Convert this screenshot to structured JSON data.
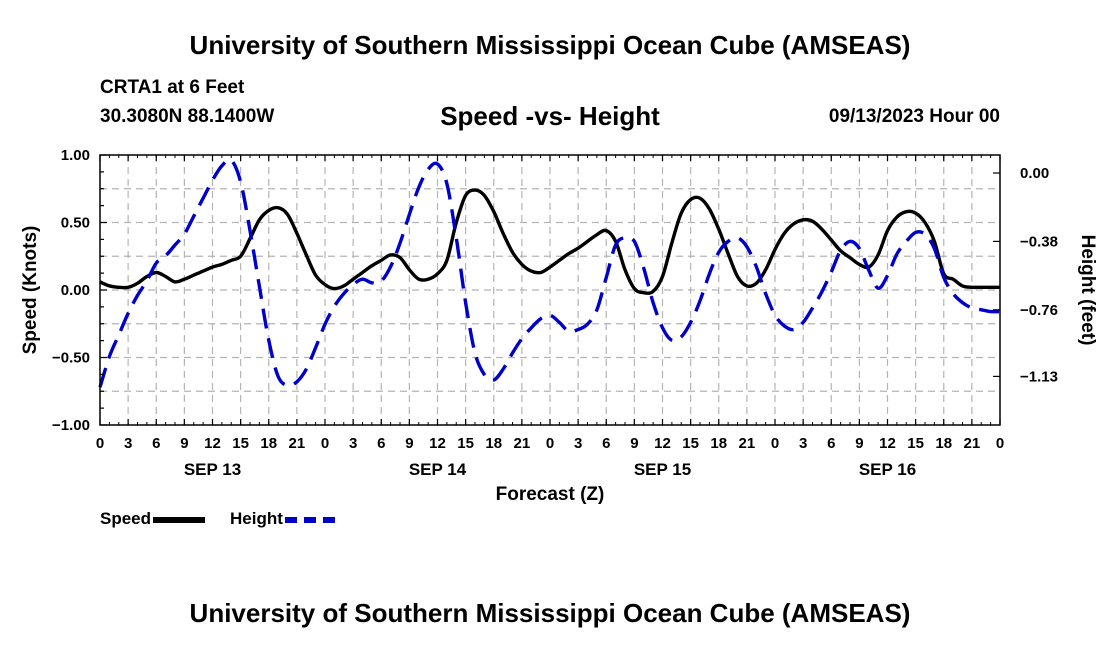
{
  "header": {
    "title": "University of Southern Mississippi Ocean Cube (AMSEAS)",
    "station": "CRTA1 at 6 Feet",
    "coordinates": "30.3080N  88.1400W",
    "subtitle": "Speed -vs- Height",
    "datetime": "09/13/2023 Hour 00"
  },
  "footer": {
    "title": "University of Southern Mississippi Ocean Cube (AMSEAS)"
  },
  "legend": {
    "speed_label": "Speed",
    "height_label": "Height"
  },
  "colors": {
    "speed": "#000000",
    "height": "#0000cc",
    "grid": "#b4b4b4"
  },
  "chart_data": {
    "type": "line",
    "title": "Speed -vs- Height",
    "xlabel": "Forecast (Z)",
    "ylabel": "Speed (Knots)",
    "y2label": "Height (feet)",
    "xlim": [
      0,
      96
    ],
    "ylim": [
      -1.0,
      1.0
    ],
    "y2lim": [
      -1.4,
      0.1
    ],
    "yticks": [
      -1.0,
      -0.5,
      0.0,
      0.5,
      1.0
    ],
    "ytick_labels": [
      "−1.00",
      "−0.50",
      "0.00",
      "0.50",
      "1.00"
    ],
    "y2ticks": [
      0.0,
      -0.38,
      -0.76,
      -1.13
    ],
    "y2tick_labels": [
      "0.00",
      "−0.38",
      "−0.76",
      "−1.13"
    ],
    "xticks": [
      0,
      3,
      6,
      9,
      12,
      15,
      18,
      21,
      24,
      27,
      30,
      33,
      36,
      39,
      42,
      45,
      48,
      51,
      54,
      57,
      60,
      63,
      66,
      69,
      72,
      75,
      78,
      81,
      84,
      87,
      90,
      93,
      96
    ],
    "xtick_labels": [
      "0",
      "3",
      "6",
      "9",
      "12",
      "15",
      "18",
      "21",
      "0",
      "3",
      "6",
      "9",
      "12",
      "15",
      "18",
      "21",
      "0",
      "3",
      "6",
      "9",
      "12",
      "15",
      "18",
      "21",
      "0",
      "3",
      "6",
      "9",
      "12",
      "15",
      "18",
      "21",
      "0"
    ],
    "day_labels": [
      {
        "x": 12,
        "label": "SEP 13"
      },
      {
        "x": 36,
        "label": "SEP 14"
      },
      {
        "x": 60,
        "label": "SEP 15"
      },
      {
        "x": 84,
        "label": "SEP 16"
      }
    ],
    "series": [
      {
        "name": "Speed",
        "axis": "left",
        "style": "solid",
        "x": [
          0,
          1,
          2,
          3,
          4,
          5,
          6,
          7,
          8,
          9,
          10,
          11,
          12,
          13,
          14,
          15,
          16,
          17,
          18,
          19,
          20,
          21,
          22,
          23,
          24,
          25,
          26,
          27,
          28,
          29,
          30,
          31,
          32,
          33,
          34,
          35,
          36,
          37,
          38,
          39,
          40,
          41,
          42,
          43,
          44,
          45,
          46,
          47,
          48,
          49,
          50,
          51,
          52,
          53,
          54,
          55,
          56,
          57,
          58,
          59,
          60,
          61,
          62,
          63,
          64,
          65,
          66,
          67,
          68,
          69,
          70,
          71,
          72,
          73,
          74,
          75,
          76,
          77,
          78,
          79,
          80,
          81,
          82,
          83,
          84,
          85,
          86,
          87,
          88,
          89,
          90,
          91,
          92,
          93,
          94,
          95,
          96
        ],
        "values": [
          0.06,
          0.03,
          0.02,
          0.02,
          0.05,
          0.1,
          0.13,
          0.1,
          0.06,
          0.08,
          0.11,
          0.14,
          0.17,
          0.19,
          0.22,
          0.25,
          0.38,
          0.52,
          0.59,
          0.61,
          0.56,
          0.42,
          0.26,
          0.11,
          0.04,
          0.01,
          0.03,
          0.08,
          0.13,
          0.18,
          0.22,
          0.26,
          0.24,
          0.15,
          0.08,
          0.08,
          0.12,
          0.22,
          0.5,
          0.7,
          0.74,
          0.7,
          0.58,
          0.42,
          0.28,
          0.19,
          0.14,
          0.13,
          0.17,
          0.22,
          0.27,
          0.31,
          0.36,
          0.41,
          0.44,
          0.36,
          0.15,
          0.01,
          -0.02,
          -0.01,
          0.1,
          0.35,
          0.57,
          0.67,
          0.68,
          0.6,
          0.45,
          0.27,
          0.1,
          0.03,
          0.05,
          0.15,
          0.3,
          0.42,
          0.49,
          0.52,
          0.51,
          0.45,
          0.37,
          0.29,
          0.24,
          0.19,
          0.17,
          0.26,
          0.44,
          0.54,
          0.58,
          0.57,
          0.5,
          0.36,
          0.12,
          0.08,
          0.03,
          0.02,
          0.02,
          0.02,
          0.02
        ]
      },
      {
        "name": "Height",
        "axis": "right",
        "style": "dashed",
        "x": [
          0,
          1,
          2,
          3,
          4,
          5,
          6,
          7,
          8,
          9,
          10,
          11,
          12,
          13,
          14,
          15,
          16,
          17,
          18,
          19,
          20,
          21,
          22,
          23,
          24,
          25,
          26,
          27,
          28,
          29,
          30,
          31,
          32,
          33,
          34,
          35,
          36,
          37,
          38,
          39,
          40,
          41,
          42,
          43,
          44,
          45,
          46,
          47,
          48,
          49,
          50,
          51,
          52,
          53,
          54,
          55,
          56,
          57,
          58,
          59,
          60,
          61,
          62,
          63,
          64,
          65,
          66,
          67,
          68,
          69,
          70,
          71,
          72,
          73,
          74,
          75,
          76,
          77,
          78,
          79,
          80,
          81,
          82,
          83,
          84,
          85,
          86,
          87,
          88,
          89,
          90,
          91,
          92,
          93,
          94,
          95,
          96
        ],
        "values": [
          -1.19,
          -1.02,
          -0.9,
          -0.78,
          -0.68,
          -0.6,
          -0.5,
          -0.46,
          -0.4,
          -0.34,
          -0.24,
          -0.14,
          -0.04,
          0.04,
          0.07,
          -0.05,
          -0.32,
          -0.63,
          -0.93,
          -1.13,
          -1.18,
          -1.16,
          -1.09,
          -0.97,
          -0.84,
          -0.74,
          -0.67,
          -0.62,
          -0.59,
          -0.61,
          -0.6,
          -0.52,
          -0.39,
          -0.23,
          -0.08,
          0.02,
          0.05,
          -0.06,
          -0.36,
          -0.72,
          -1.0,
          -1.12,
          -1.15,
          -1.09,
          -1.0,
          -0.92,
          -0.86,
          -0.81,
          -0.79,
          -0.83,
          -0.88,
          -0.87,
          -0.84,
          -0.76,
          -0.58,
          -0.4,
          -0.36,
          -0.38,
          -0.53,
          -0.72,
          -0.86,
          -0.93,
          -0.91,
          -0.83,
          -0.71,
          -0.56,
          -0.44,
          -0.38,
          -0.36,
          -0.41,
          -0.52,
          -0.67,
          -0.79,
          -0.85,
          -0.87,
          -0.83,
          -0.75,
          -0.66,
          -0.55,
          -0.43,
          -0.38,
          -0.42,
          -0.54,
          -0.64,
          -0.57,
          -0.45,
          -0.38,
          -0.33,
          -0.34,
          -0.42,
          -0.58,
          -0.67,
          -0.72,
          -0.75,
          -0.76,
          -0.77,
          -0.77
        ]
      }
    ]
  }
}
